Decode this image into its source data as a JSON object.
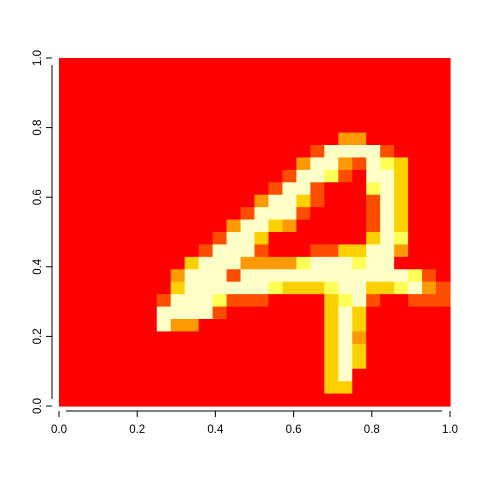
{
  "chart_data": {
    "type": "heatmap",
    "title": "",
    "xlabel": "",
    "ylabel": "",
    "xlim": [
      0,
      1
    ],
    "ylim": [
      0,
      1
    ],
    "grid": false,
    "legend": "none",
    "palette": [
      "#ff0000",
      "#ff4d00",
      "#ff9900",
      "#ffd000",
      "#ffff55",
      "#ffffc8"
    ],
    "x_ticks": [
      {
        "value": 0.0,
        "label": "0.0"
      },
      {
        "value": 0.2,
        "label": "0.2"
      },
      {
        "value": 0.4,
        "label": "0.4"
      },
      {
        "value": 0.6,
        "label": "0.6"
      },
      {
        "value": 0.8,
        "label": "0.8"
      },
      {
        "value": 1.0,
        "label": "1.0"
      }
    ],
    "y_ticks": [
      {
        "value": 0.0,
        "label": "0.0"
      },
      {
        "value": 0.2,
        "label": "0.2"
      },
      {
        "value": 0.4,
        "label": "0.4"
      },
      {
        "value": 0.6,
        "label": "0.6"
      },
      {
        "value": 0.8,
        "label": "0.8"
      },
      {
        "value": 1.0,
        "label": "1.0"
      }
    ],
    "grid_size": [
      28,
      28
    ],
    "levels": [
      "0000000000000000000000000000",
      "0000000000000000000000000000",
      "0000000000000000000000000000",
      "0000000000000000000000000000",
      "0000000000000000000000000000",
      "0000000000000000000000000000",
      "0000000000000000000022000000",
      "0000000000000000001555510000",
      "0000000000000000025521543000",
      "0000000000000000155410553000",
      "0000000000000001551000453000",
      "0000000000000025531000153000",
      "0000000000000155510000153000",
      "0000000000002553200000153000",
      "0000000000015530000000354000",
      "0000000000155510001133552000",
      "0000000003555222245554550000",
      "0000000025551555555555555410",
      "0000000035555554333455334521",
      "0000000155541110000345100111",
      "0000000555510000000353000000",
      "0000000522000000000353000000",
      "0000000000000000000352000000",
      "0000000000000000000353000000",
      "0000000000000000000353000000",
      "0000000000000000000350000000",
      "0000000000000000000330000000",
      "0000000000000000000000000000"
    ]
  }
}
